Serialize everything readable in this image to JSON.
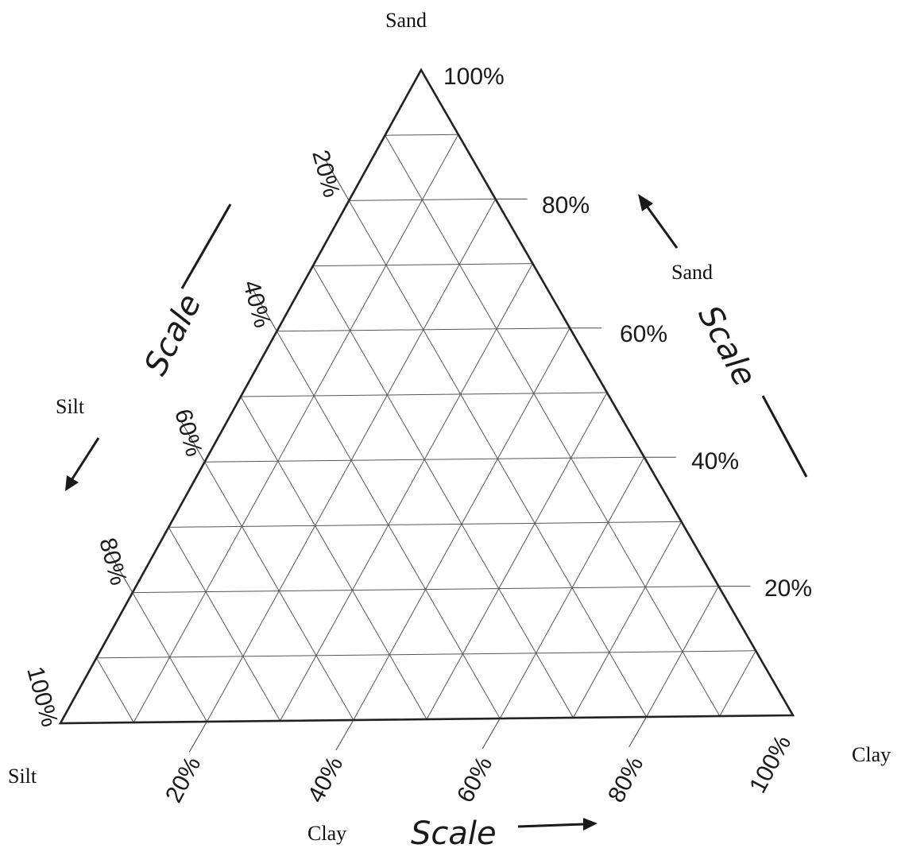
{
  "labels": {
    "top_corner": "Sand",
    "bottom_left_corner": "Silt",
    "bottom_right_corner": "Clay",
    "right_axis_name": "Sand",
    "left_axis_name": "Silt",
    "bottom_axis_name": "Clay",
    "scale_word": "Scale"
  },
  "right_axis_ticks": [
    "20%",
    "40%",
    "60%",
    "80%",
    "100%"
  ],
  "left_axis_ticks": [
    "20%",
    "40%",
    "60%",
    "80%",
    "100%"
  ],
  "bottom_axis_ticks": [
    "20%",
    "40%",
    "60%",
    "80%",
    "100%"
  ],
  "grid_divisions": 10
}
